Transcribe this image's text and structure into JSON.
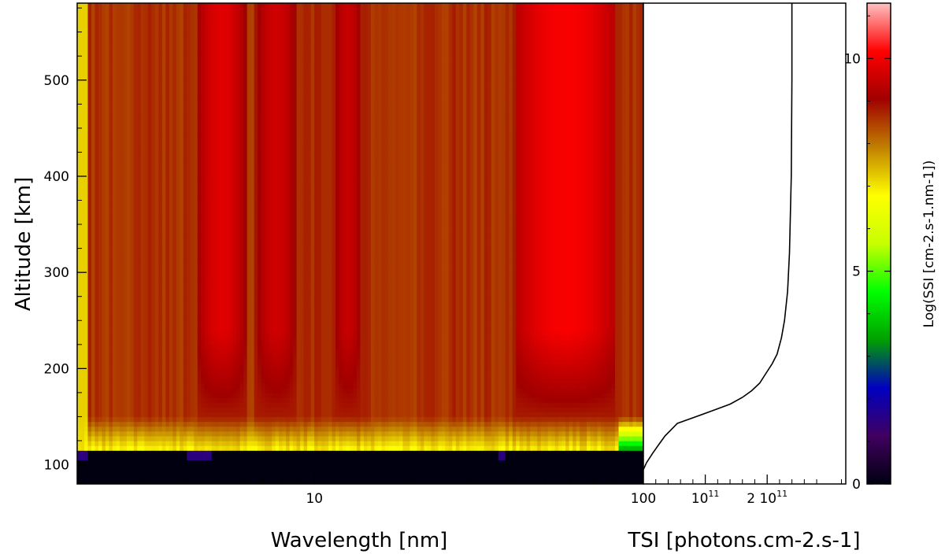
{
  "chart_data": [
    {
      "type": "heatmap",
      "title": "",
      "xlabel": "Wavelength [nm]",
      "ylabel": "Altitude [km]",
      "x_scale": "log",
      "xlim": [
        1.9,
        100
      ],
      "ylim": [
        80,
        580
      ],
      "x_ticks": [
        {
          "value": 10,
          "label": "10"
        },
        {
          "value": 100,
          "label": "100"
        }
      ],
      "y_ticks": [
        {
          "value": 100,
          "label": "100"
        },
        {
          "value": 200,
          "label": "200"
        },
        {
          "value": 300,
          "label": "300"
        },
        {
          "value": 400,
          "label": "400"
        },
        {
          "value": 500,
          "label": "500"
        }
      ],
      "colorbar": {
        "label": "Log(SSI [cm-2.s-1.nm-1])",
        "range": [
          0,
          11.3
        ],
        "ticks": [
          {
            "value": 0,
            "label": "0"
          },
          {
            "value": 5,
            "label": "5"
          },
          {
            "value": 10,
            "label": "10"
          }
        ],
        "colormap": [
          "#000010",
          "#400060",
          "#0000c0",
          "#00a000",
          "#00ff00",
          "#c8ff00",
          "#ffff00",
          "#c08000",
          "#a00000",
          "#ff0000",
          "#ffc0c0"
        ]
      },
      "features": {
        "opaque_below_km": 116,
        "band_regions": [
          {
            "wl_min": 4.4,
            "wl_max": 6.2,
            "log_ssi": 9.8
          },
          {
            "wl_min": 6.6,
            "wl_max": 8.9,
            "log_ssi": 9.6
          },
          {
            "wl_min": 11.4,
            "wl_max": 14.0,
            "log_ssi": 9.5
          },
          {
            "wl_min": 41,
            "wl_max": 82,
            "log_ssi": 10.1
          }
        ],
        "background_log_ssi": 8.8
      }
    },
    {
      "type": "line",
      "xlabel": "TSI [photons.cm-2.s-1]",
      "ylabel": "",
      "xlim": [
        0,
        327000000000.0
      ],
      "ylim": [
        80,
        580
      ],
      "x_ticks": [
        {
          "value": 100000000000.0,
          "label": "10"
        },
        {
          "value": 200000000000.0,
          "label": "2 10"
        }
      ],
      "x_tick_exponent": "11",
      "series": [
        {
          "x": [
            0,
            5000000000.0,
            15000000000.0,
            25000000000.0,
            35000000000.0,
            55000000000.0,
            85000000000.0,
            115000000000.0,
            140000000000.0,
            160000000000.0,
            175000000000.0,
            188000000000.0,
            198000000000.0,
            208000000000.0,
            216000000000.0,
            223000000000.0,
            228000000000.0,
            233000000000.0,
            236000000000.0,
            239000000000.0,
            240000000000.0,
            240000000000.0
          ],
          "y": [
            95,
            102,
            112,
            121,
            130,
            143,
            150,
            157,
            163,
            170,
            177,
            185,
            195,
            205,
            215,
            232,
            250,
            280,
            320,
            400,
            500,
            580
          ]
        }
      ]
    }
  ]
}
